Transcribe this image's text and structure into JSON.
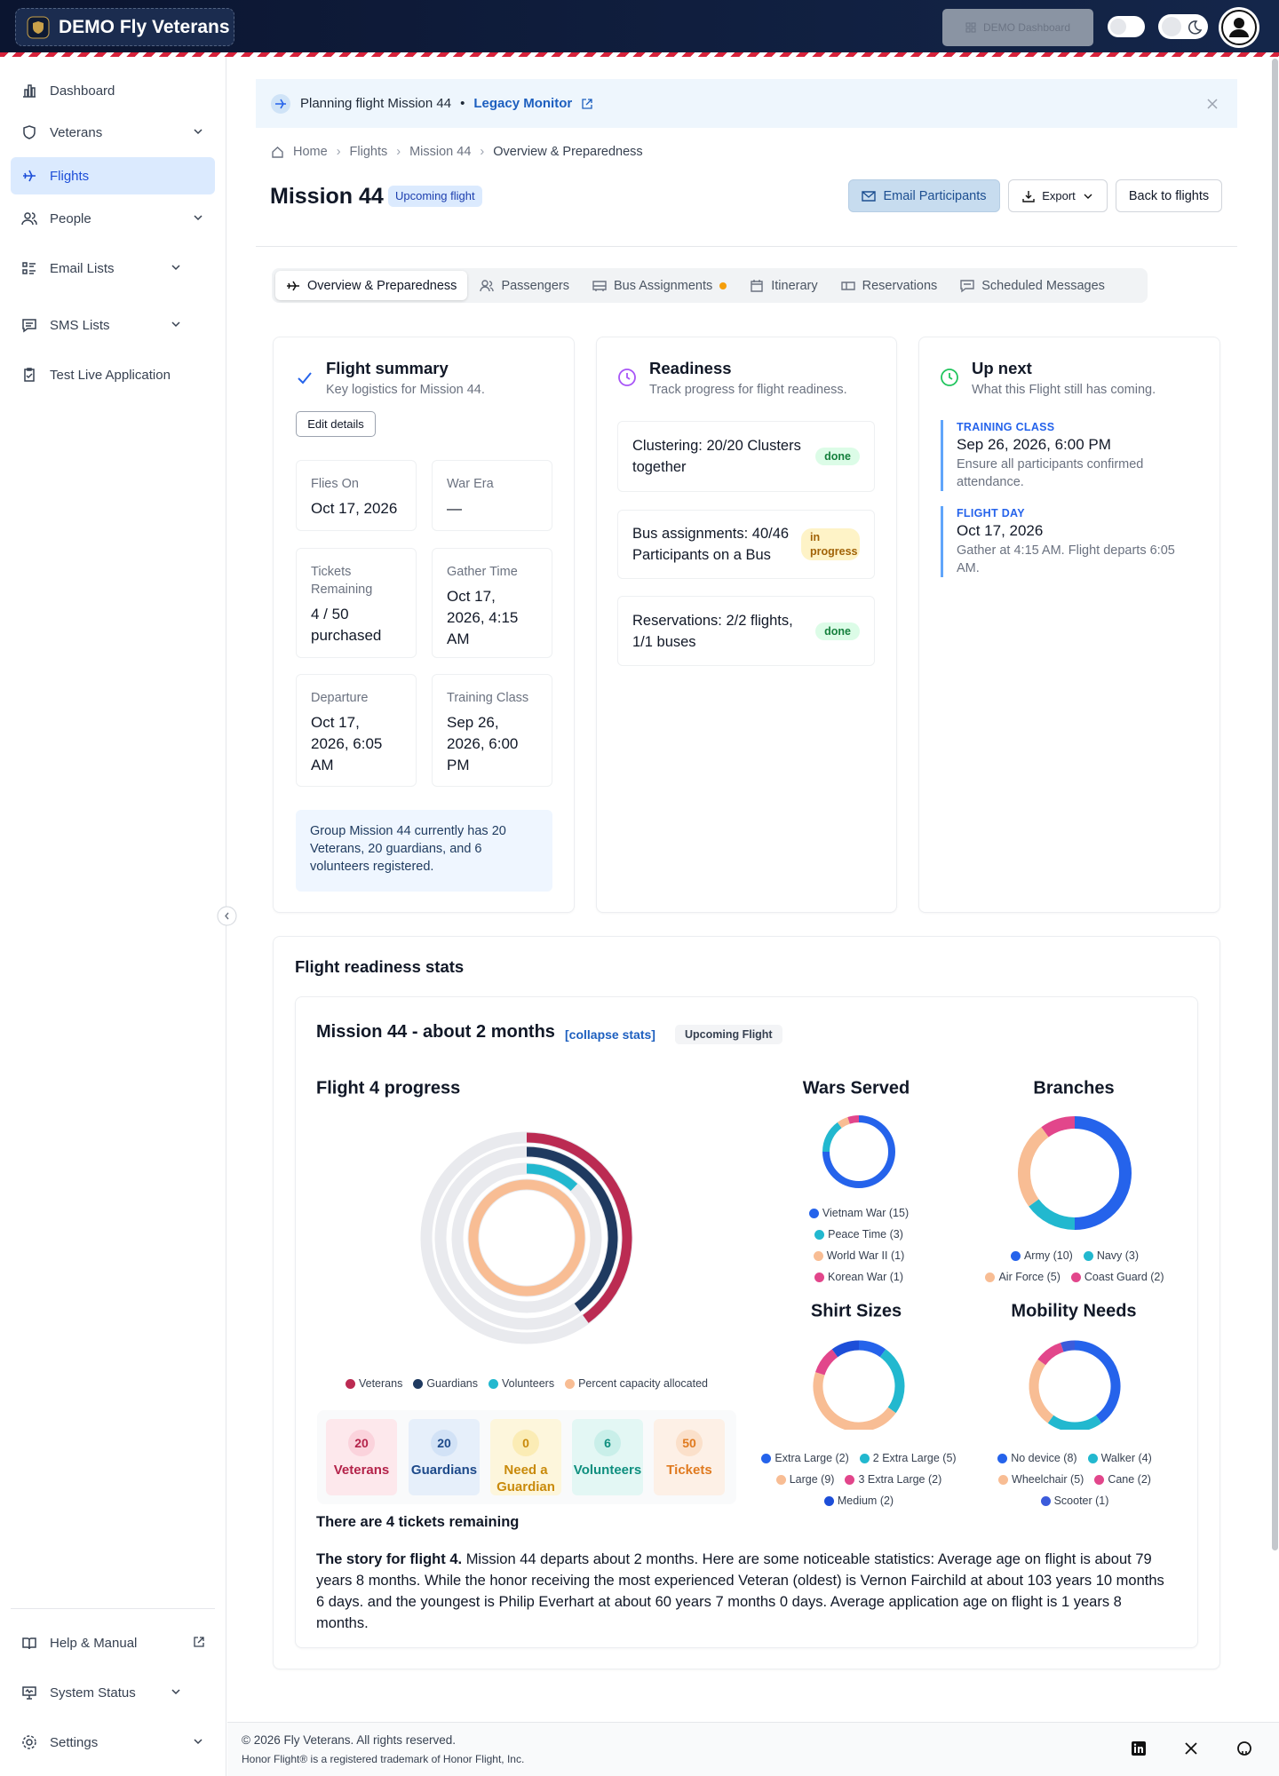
{
  "header": {
    "brand": "DEMO Fly Veterans",
    "dashboard_button": "DEMO Dashboard"
  },
  "sidebar": {
    "items": [
      "Dashboard",
      "Veterans",
      "Flights",
      "People",
      "Email Lists",
      "SMS Lists",
      "Test Live Application"
    ],
    "bottom_items": [
      "Help & Manual",
      "System Status",
      "Settings"
    ]
  },
  "banner": {
    "text": "Planning flight Mission 44",
    "link": "Legacy Monitor"
  },
  "breadcrumb": [
    "Home",
    "Flights",
    "Mission 44",
    "Overview & Preparedness"
  ],
  "page": {
    "title": "Mission 44",
    "badge": "Upcoming flight",
    "actions": [
      "Email Participants",
      "Export",
      "Back to flights"
    ]
  },
  "tabs": [
    "Overview & Preparedness",
    "Passengers",
    "Bus Assignments",
    "Itinerary",
    "Reservations",
    "Scheduled Messages"
  ],
  "flight_summary": {
    "title": "Flight summary",
    "subtitle": "Key logistics for Mission 44.",
    "edit": "Edit details",
    "fields": [
      {
        "label": "Flies On",
        "value": "Oct 17, 2026"
      },
      {
        "label": "War Era",
        "value": "—"
      },
      {
        "label": "Tickets Remaining",
        "value": "4 / 50 purchased"
      },
      {
        "label": "Gather Time",
        "value": "Oct 17, 2026, 4:15 AM"
      },
      {
        "label": "Departure",
        "value": "Oct 17, 2026, 6:05 AM"
      },
      {
        "label": "Training Class",
        "value": "Sep 26, 2026, 6:00 PM"
      }
    ],
    "note": "Group Mission 44 currently has 20 Veterans, 20 guardians, and 6 volunteers registered."
  },
  "readiness": {
    "title": "Readiness",
    "subtitle": "Track progress for flight readiness.",
    "items": [
      {
        "text": "Clustering: 20/20 Clusters together",
        "status": "done"
      },
      {
        "text": "Bus assignments: 40/46 Participants on a Bus",
        "status": "in progress"
      },
      {
        "text": "Reservations: 2/2 flights, 1/1 buses",
        "status": "done"
      }
    ]
  },
  "up_next": {
    "title": "Up next",
    "subtitle": "What this Flight still has coming.",
    "events": [
      {
        "label": "TRAINING CLASS",
        "date": "Sep 26, 2026, 6:00 PM",
        "description": "Ensure all participants confirmed attendance."
      },
      {
        "label": "FLIGHT DAY",
        "date": "Oct 17, 2026",
        "description": "Gather at 4:15 AM. Flight departs 6:05 AM."
      }
    ]
  },
  "stats": {
    "title": "Flight readiness stats",
    "heading": "Mission 44 - about 2 months",
    "collapse": "[collapse stats]",
    "badge": "Upcoming Flight",
    "tiles": [
      {
        "value": 20,
        "label": "Veterans"
      },
      {
        "value": 20,
        "label": "Guardians"
      },
      {
        "value": 0,
        "label": "Need a Guardian"
      },
      {
        "value": 6,
        "label": "Volunteers"
      },
      {
        "value": 50,
        "label": "Tickets"
      }
    ],
    "remaining": "There are 4 tickets remaining",
    "story_lead": "The story for flight 4.",
    "story": "Mission 44 departs about 2 months. Here are some noticeable statistics: Average age on flight is about 79 years 8 months. While the honor receiving the most experienced Veteran (oldest) is Vernon Fairchild at about 103 years 10 months 6 days.  and the youngest is Philip Everhart at about 60 years 7 months 0 days. Average application age on flight is 1 years 8 months."
  },
  "chart_data": [
    {
      "type": "radial",
      "title": "Flight 4 progress",
      "ylim": [
        0,
        100
      ],
      "track_color": "#e9eaee",
      "series": [
        {
          "name": "Veterans",
          "color": "#bb2b52",
          "values": [
            40
          ]
        },
        {
          "name": "Guardians",
          "color": "#1f3a60",
          "values": [
            40
          ]
        },
        {
          "name": "Volunteers",
          "color": "#22b8cf",
          "values": [
            12
          ]
        },
        {
          "name": "Percent capacity allocated",
          "color": "#f8bd94",
          "values": [
            100
          ]
        }
      ]
    },
    {
      "type": "donut",
      "title": "Wars Served",
      "categories": [
        "Vietnam War (15)",
        "Peace Time (3)",
        "World War II (1)",
        "Korean War (1)"
      ],
      "values": [
        15,
        3,
        1,
        1
      ],
      "colors": [
        "#2563eb",
        "#22b8cf",
        "#f8bd94",
        "#e2468b"
      ]
    },
    {
      "type": "donut",
      "title": "Branches",
      "categories": [
        "Army (10)",
        "Navy (3)",
        "Air Force (5)",
        "Coast Guard (2)"
      ],
      "values": [
        10,
        3,
        5,
        2
      ],
      "colors": [
        "#2563eb",
        "#22b8cf",
        "#f8bd94",
        "#e2468b"
      ]
    },
    {
      "type": "donut",
      "title": "Shirt Sizes",
      "categories": [
        "Extra Large (2)",
        "2 Extra Large (5)",
        "Large (9)",
        "3 Extra Large (2)",
        "Medium (2)"
      ],
      "values": [
        2,
        5,
        9,
        2,
        2
      ],
      "colors": [
        "#2563eb",
        "#22b8cf",
        "#f8bd94",
        "#e2468b",
        "#1d4ed8"
      ]
    },
    {
      "type": "donut",
      "title": "Mobility Needs",
      "categories": [
        "No device (8)",
        "Walker (4)",
        "Wheelchair (5)",
        "Cane (2)",
        "Scooter (1)"
      ],
      "values": [
        8,
        4,
        5,
        2,
        1
      ],
      "colors": [
        "#2563eb",
        "#22b8cf",
        "#f8bd94",
        "#e2468b",
        "#3b5bdb"
      ]
    }
  ],
  "footer": {
    "copyright": "© 2026 Fly Veterans. All rights reserved.",
    "trademark": "Honor Flight® is a registered trademark of Honor Flight, Inc."
  }
}
